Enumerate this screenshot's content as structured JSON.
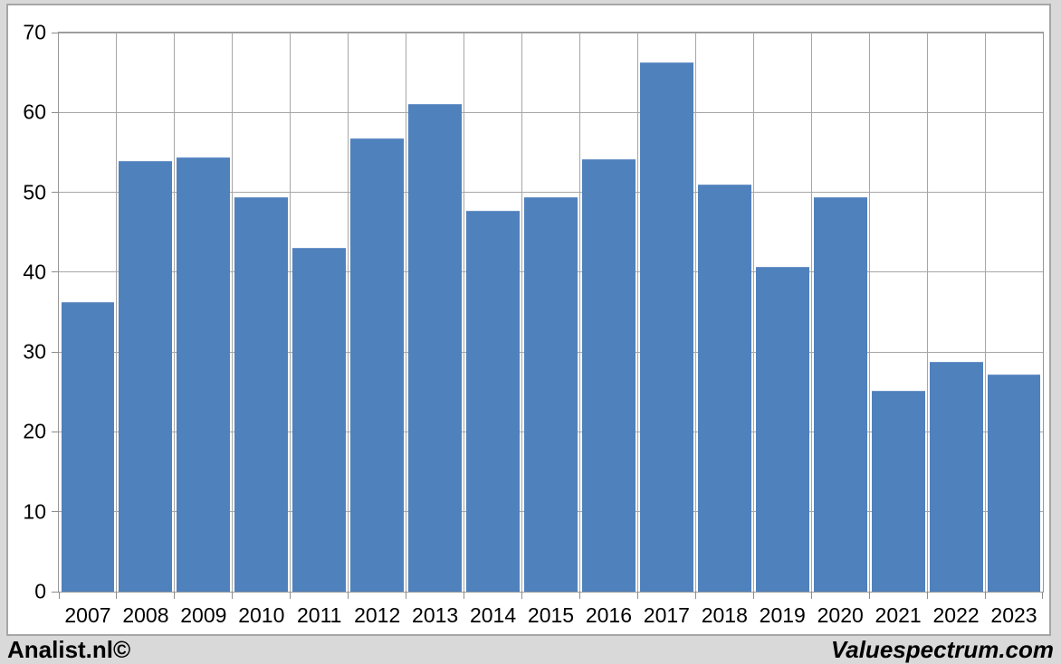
{
  "chart_data": {
    "type": "bar",
    "title": "",
    "xlabel": "",
    "ylabel": "",
    "categories": [
      "2007",
      "2008",
      "2009",
      "2010",
      "2011",
      "2012",
      "2013",
      "2014",
      "2015",
      "2016",
      "2017",
      "2018",
      "2019",
      "2020",
      "2021",
      "2022",
      "2023"
    ],
    "values": [
      36.2,
      53.9,
      54.4,
      49.4,
      43.0,
      56.8,
      61.0,
      47.7,
      49.4,
      54.2,
      66.3,
      51.0,
      40.7,
      49.4,
      25.2,
      28.8,
      27.2
    ],
    "ylim": [
      0,
      70
    ],
    "yticks": [
      0,
      10,
      20,
      30,
      40,
      50,
      60,
      70
    ],
    "grid": true,
    "legend": "none",
    "bar_color": "#4f81bd",
    "grid_color": "#a6a6a6",
    "plot_background": "#ffffff",
    "page_background": "#d9d9d9"
  },
  "footer": {
    "left": "Analist.nl©",
    "right": "Valuespectrum.com"
  }
}
